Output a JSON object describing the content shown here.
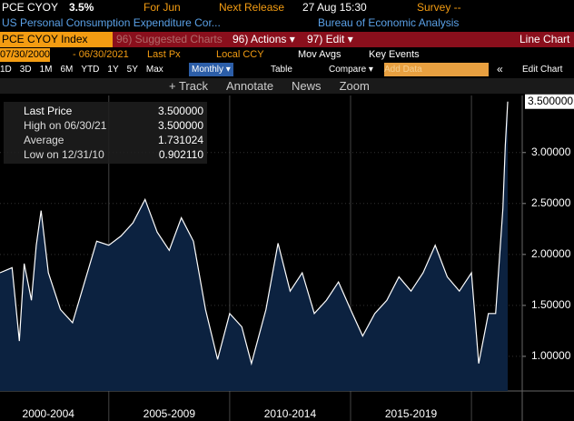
{
  "header": {
    "ticker": "PCE CYOY",
    "value": "3.5%",
    "for": "For Jun",
    "next_release": "Next Release",
    "release_time": "27 Aug 15:30",
    "survey": "Survey --",
    "name": "US Personal Consumption Expenditure Cor...",
    "source": "Bureau of Economic Analysis"
  },
  "toolbar": {
    "security": "PCE CYOY Index",
    "suggested": "96) Suggested Charts",
    "actions": "96) Actions ▾",
    "edit": "97) Edit ▾",
    "chart_type": "Line Chart",
    "start": "07/30/2000",
    "end": "- 06/30/2021",
    "field": "Last Px",
    "currency": "Local CCY",
    "mov_avgs": "Mov Avgs",
    "key_events": "Key Events",
    "ranges": [
      "1D",
      "3D",
      "1M",
      "6M",
      "YTD",
      "1Y",
      "5Y",
      "Max"
    ],
    "frequency": "Monthly ▾",
    "table": "Table",
    "compare": "Compare ▾",
    "add_data": "Add Data",
    "collapse": "«",
    "edit_chart": "Edit Chart",
    "tools": [
      "+ Track",
      "Annotate",
      "News",
      "Zoom"
    ]
  },
  "legend_stats": [
    {
      "label": "Last Price",
      "value": "3.500000"
    },
    {
      "label": "High on 06/30/21",
      "value": "3.500000"
    },
    {
      "label": "Average",
      "value": "1.731024"
    },
    {
      "label": "Low on 12/31/10",
      "value": "0.902110"
    }
  ],
  "chart_data": {
    "type": "area",
    "color": "#ffffff",
    "fill": "#0c2240",
    "grid": true,
    "x": [
      2000.5,
      2001.0,
      2001.3,
      2001.5,
      2001.8,
      2002.0,
      2002.2,
      2002.5,
      2003.0,
      2003.5,
      2004.0,
      2004.5,
      2005.0,
      2005.5,
      2006.0,
      2006.5,
      2007.0,
      2007.5,
      2008.0,
      2008.5,
      2009.0,
      2009.5,
      2010.0,
      2010.5,
      2010.9,
      2011.5,
      2012.0,
      2012.5,
      2013.0,
      2013.5,
      2014.0,
      2014.5,
      2015.0,
      2015.5,
      2016.0,
      2016.5,
      2017.0,
      2017.5,
      2018.0,
      2018.5,
      2019.0,
      2019.5,
      2020.0,
      2020.3,
      2020.7,
      2021.0,
      2021.3,
      2021.4,
      2021.5
    ],
    "values": [
      1.82,
      1.87,
      1.15,
      1.91,
      1.55,
      2.09,
      2.43,
      1.82,
      1.46,
      1.33,
      1.73,
      2.13,
      2.09,
      2.18,
      2.31,
      2.54,
      2.22,
      2.04,
      2.36,
      2.13,
      1.46,
      0.97,
      1.42,
      1.29,
      0.93,
      1.46,
      2.11,
      1.64,
      1.82,
      1.42,
      1.55,
      1.73,
      1.46,
      1.2,
      1.42,
      1.55,
      1.78,
      1.64,
      1.82,
      2.09,
      1.78,
      1.64,
      1.82,
      0.93,
      1.42,
      1.42,
      2.45,
      3.07,
      3.5
    ],
    "last_value_label": "3.500000",
    "xlim": [
      2000.5,
      2022.1
    ],
    "xticks": [
      2005,
      2010,
      2015,
      2020
    ],
    "x_period_labels": [
      "2000-2004",
      "2005-2009",
      "2010-2014",
      "2015-2019"
    ],
    "ylim": [
      0.66,
      3.56
    ],
    "yticks": [
      {
        "value": 1,
        "label": "1.00000"
      },
      {
        "value": 1.5,
        "label": "1.50000"
      },
      {
        "value": 2,
        "label": "2.00000"
      },
      {
        "value": 2.5,
        "label": "2.50000"
      },
      {
        "value": 3,
        "label": "3.00000"
      }
    ]
  }
}
